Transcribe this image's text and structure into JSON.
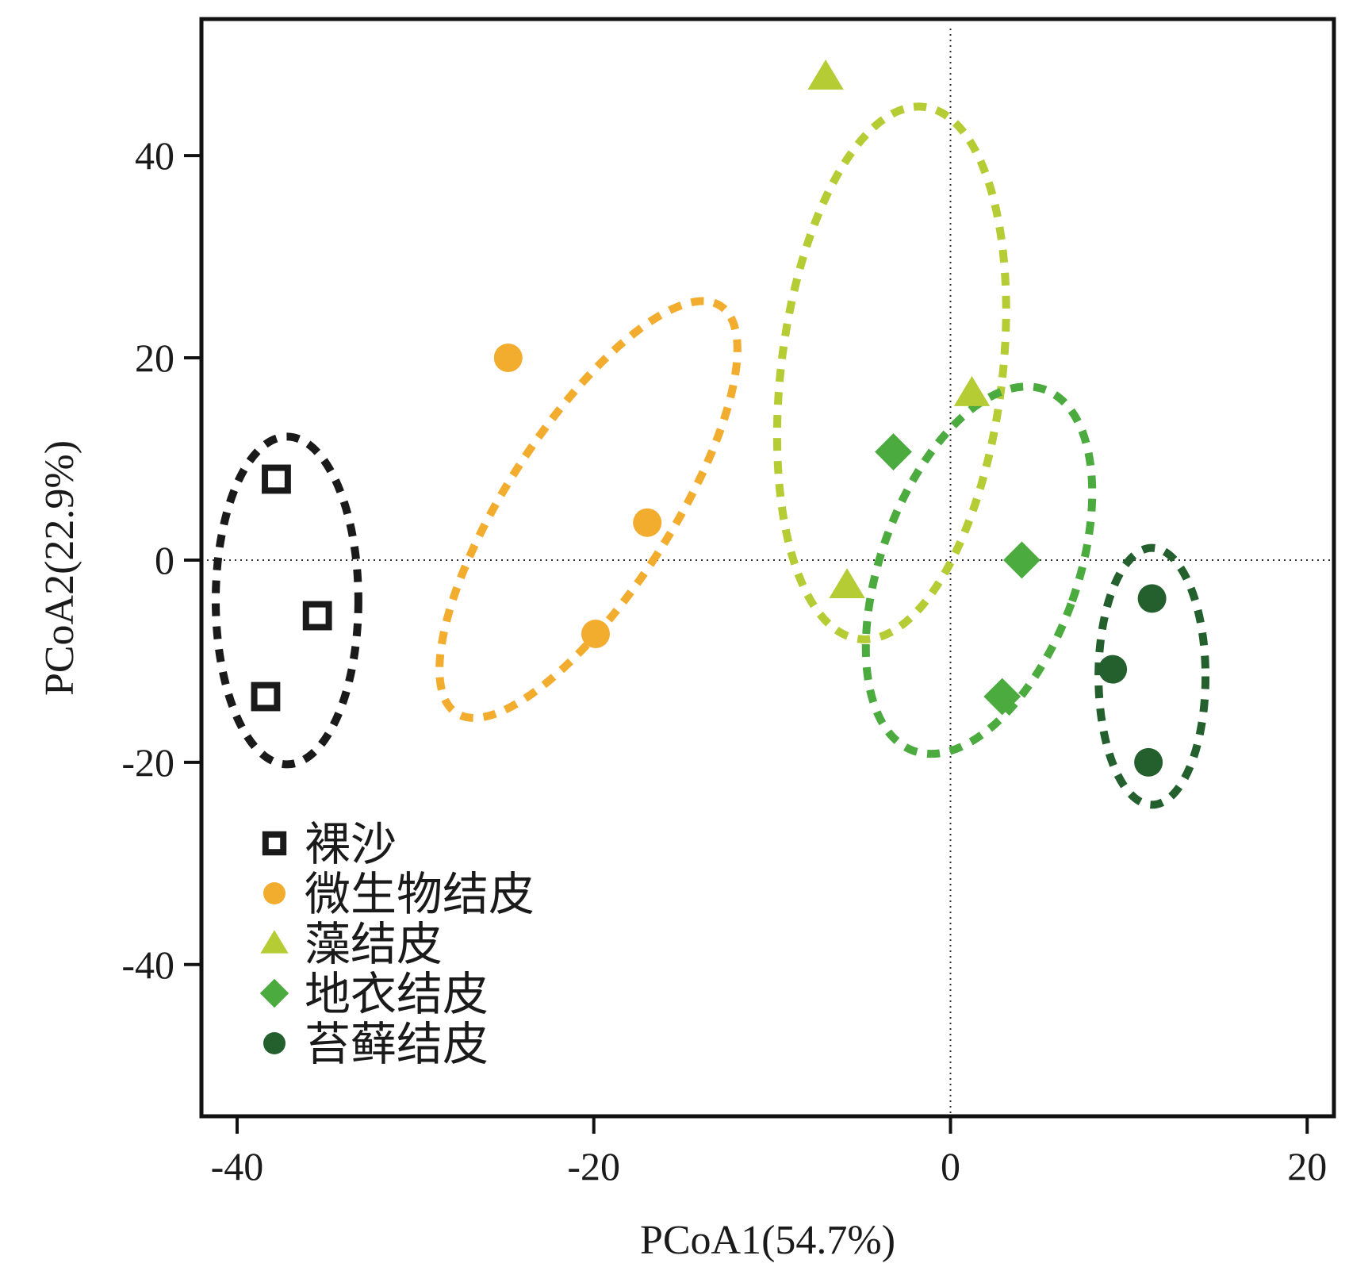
{
  "chart_data": {
    "type": "scatter",
    "xlabel": "PCoA1(54.7%)",
    "ylabel": "PCoA2(22.9%)",
    "xlim": [
      -42,
      21.5
    ],
    "ylim": [
      -55,
      53.5
    ],
    "xticks": [
      -40,
      -20,
      0,
      20
    ],
    "yticks": [
      40,
      20,
      0,
      -20,
      -40
    ],
    "xtick_labels": [
      "-40",
      "-20",
      "0",
      "20"
    ],
    "ytick_labels": [
      "40",
      "20",
      "0",
      "-20",
      "-40"
    ],
    "reference_lines": {
      "x": 0,
      "y": 0,
      "style": "dotted"
    },
    "grid": false,
    "legend_position": "bottom-left",
    "series": [
      {
        "name": "裸沙",
        "marker": "square-open",
        "color": "#1a1a1a",
        "points": [
          [
            -37.8,
            8
          ],
          [
            -35.5,
            -5.5
          ],
          [
            -38.4,
            -13.5
          ]
        ],
        "ellipse": {
          "cx": -37.2,
          "cy": -4,
          "rx": 4.0,
          "ry": 16.2,
          "angle": 0
        }
      },
      {
        "name": "微生物结皮",
        "marker": "circle",
        "color": "#F2AC2E",
        "points": [
          [
            -24.8,
            20
          ],
          [
            -17,
            3.7
          ],
          [
            -19.9,
            -7.3
          ]
        ],
        "ellipse": {
          "cx": -20.3,
          "cy": 5.0,
          "rx": 4.6,
          "ry": 24.0,
          "angle": 33
        }
      },
      {
        "name": "藻结皮",
        "marker": "triangle",
        "color": "#B5CC34",
        "points": [
          [
            -7,
            47.8
          ],
          [
            1.2,
            16.5
          ],
          [
            -5.8,
            -2.5
          ]
        ],
        "ellipse": {
          "cx": -3.3,
          "cy": 18.5,
          "rx": 6.2,
          "ry": 26.5,
          "angle": 7
        }
      },
      {
        "name": "地衣结皮",
        "marker": "diamond",
        "color": "#4BAB3E",
        "points": [
          [
            -3.2,
            10.7
          ],
          [
            4.0,
            0
          ],
          [
            2.9,
            -13.5
          ]
        ],
        "ellipse": {
          "cx": 1.6,
          "cy": -1.0,
          "rx": 5.5,
          "ry": 19.0,
          "angle": 20
        }
      },
      {
        "name": "苔藓结皮",
        "marker": "circle",
        "color": "#23602E",
        "points": [
          [
            11.3,
            -3.8
          ],
          [
            9.1,
            -10.8
          ],
          [
            11.1,
            -20
          ]
        ],
        "ellipse": {
          "cx": 11.3,
          "cy": -11.5,
          "rx": 3.0,
          "ry": 12.7,
          "angle": 0
        }
      }
    ]
  }
}
